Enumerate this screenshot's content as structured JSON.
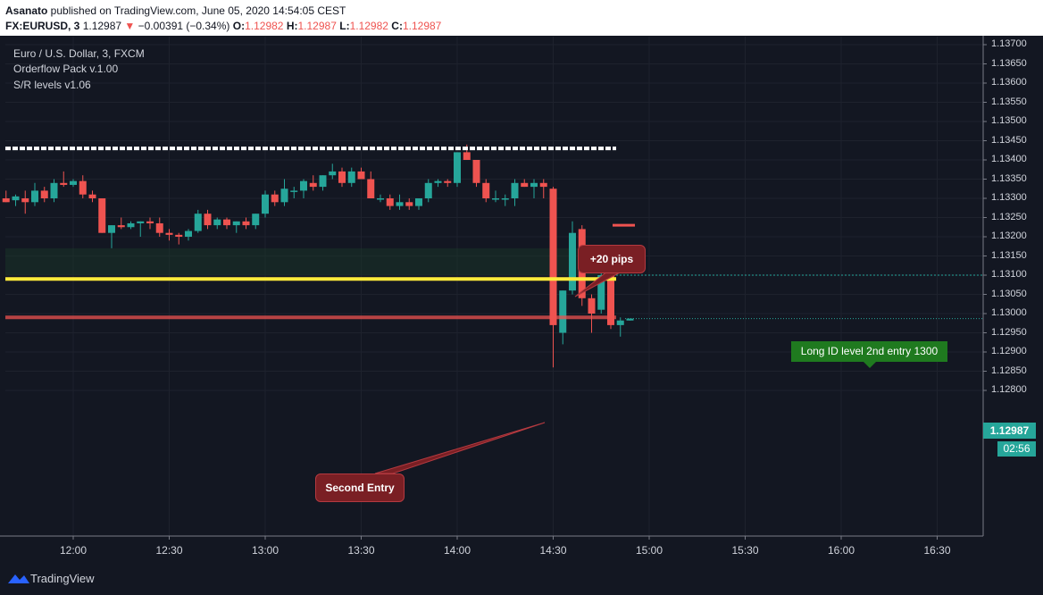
{
  "header": {
    "author": "Asanato",
    "published_text": " published on TradingView.com, June 05, 2020 14:54:05 CEST",
    "symbol": "FX:EURUSD, 3",
    "last_price": "1.12987",
    "change_arrow": "▼",
    "change": "−0.00391 (−0.34%)",
    "o_label": "O:",
    "o_value": "1.12982",
    "h_label": "H:",
    "h_value": "1.12987",
    "l_label": "L:",
    "l_value": "1.12982",
    "c_label": "C:",
    "c_value": "1.12987"
  },
  "legend": {
    "title": "Euro / U.S. Dollar, 3, FXCM",
    "indicator1": "Orderflow Pack v.1.00",
    "indicator2": "S/R levels v1.06"
  },
  "price_axis": {
    "labels": [
      "1.13700",
      "1.13650",
      "1.13600",
      "1.13550",
      "1.13500",
      "1.13450",
      "1.13400",
      "1.13350",
      "1.13300",
      "1.13250",
      "1.13200",
      "1.13150",
      "1.13100",
      "1.13050",
      "1.13000",
      "1.12950",
      "1.12900",
      "1.12850",
      "1.12800"
    ],
    "current_price": "1.12987",
    "countdown": "02:56"
  },
  "time_axis": {
    "labels": [
      "12:00",
      "12:30",
      "13:00",
      "13:30",
      "14:00",
      "14:30",
      "15:00",
      "15:30",
      "16:00",
      "16:30"
    ]
  },
  "annotations": {
    "pips_label": "+20 pips",
    "entry_label": "Second Entry",
    "long_label": "Long ID level 2nd entry 1300"
  },
  "levels": {
    "resistance": 1.1343,
    "yellow_support": 1.1309,
    "red_entry": 1.1299,
    "long_level": 1.131,
    "target": 1.1323,
    "zone_top": 1.1317,
    "zone_bottom": 1.131
  },
  "colors": {
    "bull": "#26a69a",
    "bear": "#ef5350",
    "background": "#131722",
    "grid": "#1e222d",
    "resistance": "#ffffff",
    "support": "#ffeb3b",
    "entry": "#ef5350",
    "long_box": "#1f7a1f",
    "callout": "#7a1f24"
  },
  "footer": {
    "brand": "TradingView"
  },
  "chart_data": {
    "type": "candlestick",
    "symbol": "FX:EURUSD",
    "interval": "3",
    "x_labels": [
      "12:00",
      "12:30",
      "13:00",
      "13:30",
      "14:00",
      "14:30",
      "15:00",
      "15:30",
      "16:00",
      "16:30"
    ],
    "ylim": [
      1.1278,
      1.1372
    ],
    "candles": [
      {
        "t": "11:39",
        "o": 1.133,
        "h": 1.1332,
        "l": 1.1329,
        "c": 1.1329
      },
      {
        "t": "11:42",
        "o": 1.13295,
        "h": 1.1331,
        "l": 1.1328,
        "c": 1.13305
      },
      {
        "t": "11:45",
        "o": 1.133,
        "h": 1.1332,
        "l": 1.1326,
        "c": 1.1329
      },
      {
        "t": "11:48",
        "o": 1.1329,
        "h": 1.1334,
        "l": 1.1328,
        "c": 1.1332
      },
      {
        "t": "11:51",
        "o": 1.1332,
        "h": 1.1333,
        "l": 1.1329,
        "c": 1.133
      },
      {
        "t": "11:54",
        "o": 1.133,
        "h": 1.1335,
        "l": 1.1329,
        "c": 1.1334
      },
      {
        "t": "11:57",
        "o": 1.1334,
        "h": 1.1337,
        "l": 1.1333,
        "c": 1.13335
      },
      {
        "t": "12:00",
        "o": 1.13335,
        "h": 1.1335,
        "l": 1.1333,
        "c": 1.13345
      },
      {
        "t": "12:03",
        "o": 1.13345,
        "h": 1.1336,
        "l": 1.133,
        "c": 1.1331
      },
      {
        "t": "12:06",
        "o": 1.1331,
        "h": 1.1332,
        "l": 1.1329,
        "c": 1.133
      },
      {
        "t": "12:09",
        "o": 1.133,
        "h": 1.133,
        "l": 1.1321,
        "c": 1.1321
      },
      {
        "t": "12:12",
        "o": 1.1321,
        "h": 1.1323,
        "l": 1.1317,
        "c": 1.1323
      },
      {
        "t": "12:15",
        "o": 1.1323,
        "h": 1.1325,
        "l": 1.1322,
        "c": 1.13225
      },
      {
        "t": "12:18",
        "o": 1.13225,
        "h": 1.1324,
        "l": 1.1322,
        "c": 1.13235
      },
      {
        "t": "12:21",
        "o": 1.13235,
        "h": 1.1324,
        "l": 1.132,
        "c": 1.1324
      },
      {
        "t": "12:24",
        "o": 1.1324,
        "h": 1.1325,
        "l": 1.1322,
        "c": 1.13235
      },
      {
        "t": "12:27",
        "o": 1.13235,
        "h": 1.1325,
        "l": 1.132,
        "c": 1.1321
      },
      {
        "t": "12:30",
        "o": 1.1321,
        "h": 1.1322,
        "l": 1.1319,
        "c": 1.13205
      },
      {
        "t": "12:33",
        "o": 1.13205,
        "h": 1.1321,
        "l": 1.1318,
        "c": 1.132
      },
      {
        "t": "12:36",
        "o": 1.132,
        "h": 1.1322,
        "l": 1.1319,
        "c": 1.13215
      },
      {
        "t": "12:39",
        "o": 1.13215,
        "h": 1.1327,
        "l": 1.1321,
        "c": 1.1326
      },
      {
        "t": "12:42",
        "o": 1.1326,
        "h": 1.1327,
        "l": 1.1322,
        "c": 1.1323
      },
      {
        "t": "12:45",
        "o": 1.1323,
        "h": 1.1325,
        "l": 1.1322,
        "c": 1.13245
      },
      {
        "t": "12:48",
        "o": 1.13245,
        "h": 1.1325,
        "l": 1.1322,
        "c": 1.1323
      },
      {
        "t": "12:51",
        "o": 1.1323,
        "h": 1.1324,
        "l": 1.1321,
        "c": 1.1324
      },
      {
        "t": "12:54",
        "o": 1.1324,
        "h": 1.1325,
        "l": 1.1322,
        "c": 1.1323
      },
      {
        "t": "12:57",
        "o": 1.1323,
        "h": 1.1326,
        "l": 1.1322,
        "c": 1.1326
      },
      {
        "t": "13:00",
        "o": 1.1326,
        "h": 1.1332,
        "l": 1.1325,
        "c": 1.1331
      },
      {
        "t": "13:03",
        "o": 1.1331,
        "h": 1.1332,
        "l": 1.1328,
        "c": 1.1329
      },
      {
        "t": "13:06",
        "o": 1.1329,
        "h": 1.1335,
        "l": 1.1328,
        "c": 1.13325
      },
      {
        "t": "13:09",
        "o": 1.1332,
        "h": 1.1333,
        "l": 1.133,
        "c": 1.1332
      },
      {
        "t": "13:12",
        "o": 1.1332,
        "h": 1.1335,
        "l": 1.133,
        "c": 1.13345
      },
      {
        "t": "13:15",
        "o": 1.1334,
        "h": 1.1336,
        "l": 1.1332,
        "c": 1.1333
      },
      {
        "t": "13:18",
        "o": 1.1333,
        "h": 1.1336,
        "l": 1.1332,
        "c": 1.1336
      },
      {
        "t": "13:21",
        "o": 1.1336,
        "h": 1.1339,
        "l": 1.1335,
        "c": 1.1337
      },
      {
        "t": "13:24",
        "o": 1.1337,
        "h": 1.1338,
        "l": 1.1333,
        "c": 1.1334
      },
      {
        "t": "13:27",
        "o": 1.1334,
        "h": 1.1338,
        "l": 1.1333,
        "c": 1.1337
      },
      {
        "t": "13:30",
        "o": 1.1337,
        "h": 1.1338,
        "l": 1.1335,
        "c": 1.1335
      },
      {
        "t": "13:33",
        "o": 1.1335,
        "h": 1.1337,
        "l": 1.133,
        "c": 1.133
      },
      {
        "t": "13:36",
        "o": 1.133,
        "h": 1.1331,
        "l": 1.1329,
        "c": 1.133
      },
      {
        "t": "13:39",
        "o": 1.133,
        "h": 1.1331,
        "l": 1.1327,
        "c": 1.1328
      },
      {
        "t": "13:42",
        "o": 1.1328,
        "h": 1.1331,
        "l": 1.1327,
        "c": 1.1329
      },
      {
        "t": "13:45",
        "o": 1.1329,
        "h": 1.133,
        "l": 1.1327,
        "c": 1.1328
      },
      {
        "t": "13:48",
        "o": 1.1328,
        "h": 1.133,
        "l": 1.1327,
        "c": 1.133
      },
      {
        "t": "13:51",
        "o": 1.133,
        "h": 1.1335,
        "l": 1.1329,
        "c": 1.1334
      },
      {
        "t": "13:54",
        "o": 1.1334,
        "h": 1.1335,
        "l": 1.1333,
        "c": 1.13345
      },
      {
        "t": "13:57",
        "o": 1.13345,
        "h": 1.1335,
        "l": 1.1333,
        "c": 1.1334
      },
      {
        "t": "14:00",
        "o": 1.1334,
        "h": 1.1342,
        "l": 1.1333,
        "c": 1.1342
      },
      {
        "t": "14:03",
        "o": 1.1342,
        "h": 1.1344,
        "l": 1.134,
        "c": 1.134
      },
      {
        "t": "14:06",
        "o": 1.134,
        "h": 1.134,
        "l": 1.1333,
        "c": 1.1334
      },
      {
        "t": "14:09",
        "o": 1.1334,
        "h": 1.1335,
        "l": 1.1329,
        "c": 1.133
      },
      {
        "t": "14:12",
        "o": 1.133,
        "h": 1.1332,
        "l": 1.1329,
        "c": 1.133
      },
      {
        "t": "14:15",
        "o": 1.133,
        "h": 1.1331,
        "l": 1.1328,
        "c": 1.133
      },
      {
        "t": "14:18",
        "o": 1.133,
        "h": 1.1335,
        "l": 1.1328,
        "c": 1.1334
      },
      {
        "t": "14:21",
        "o": 1.1334,
        "h": 1.1335,
        "l": 1.1333,
        "c": 1.1333
      },
      {
        "t": "14:24",
        "o": 1.1333,
        "h": 1.1335,
        "l": 1.133,
        "c": 1.1334
      },
      {
        "t": "14:27",
        "o": 1.1334,
        "h": 1.1335,
        "l": 1.133,
        "c": 1.1333
      },
      {
        "t": "14:30",
        "o": 1.13325,
        "h": 1.1333,
        "l": 1.1286,
        "c": 1.1297
      },
      {
        "t": "14:33",
        "o": 1.1295,
        "h": 1.1306,
        "l": 1.1292,
        "c": 1.1306
      },
      {
        "t": "14:36",
        "o": 1.1306,
        "h": 1.1324,
        "l": 1.1305,
        "c": 1.1321
      },
      {
        "t": "14:39",
        "o": 1.1322,
        "h": 1.1323,
        "l": 1.1302,
        "c": 1.1304
      },
      {
        "t": "14:42",
        "o": 1.1304,
        "h": 1.1305,
        "l": 1.1295,
        "c": 1.13
      },
      {
        "t": "14:45",
        "o": 1.1301,
        "h": 1.1311,
        "l": 1.13,
        "c": 1.131
      },
      {
        "t": "14:48",
        "o": 1.131,
        "h": 1.1311,
        "l": 1.1296,
        "c": 1.1297
      },
      {
        "t": "14:51",
        "o": 1.1297,
        "h": 1.1299,
        "l": 1.1294,
        "c": 1.12982
      },
      {
        "t": "14:54",
        "o": 1.12982,
        "h": 1.12987,
        "l": 1.12982,
        "c": 1.12987
      }
    ]
  }
}
